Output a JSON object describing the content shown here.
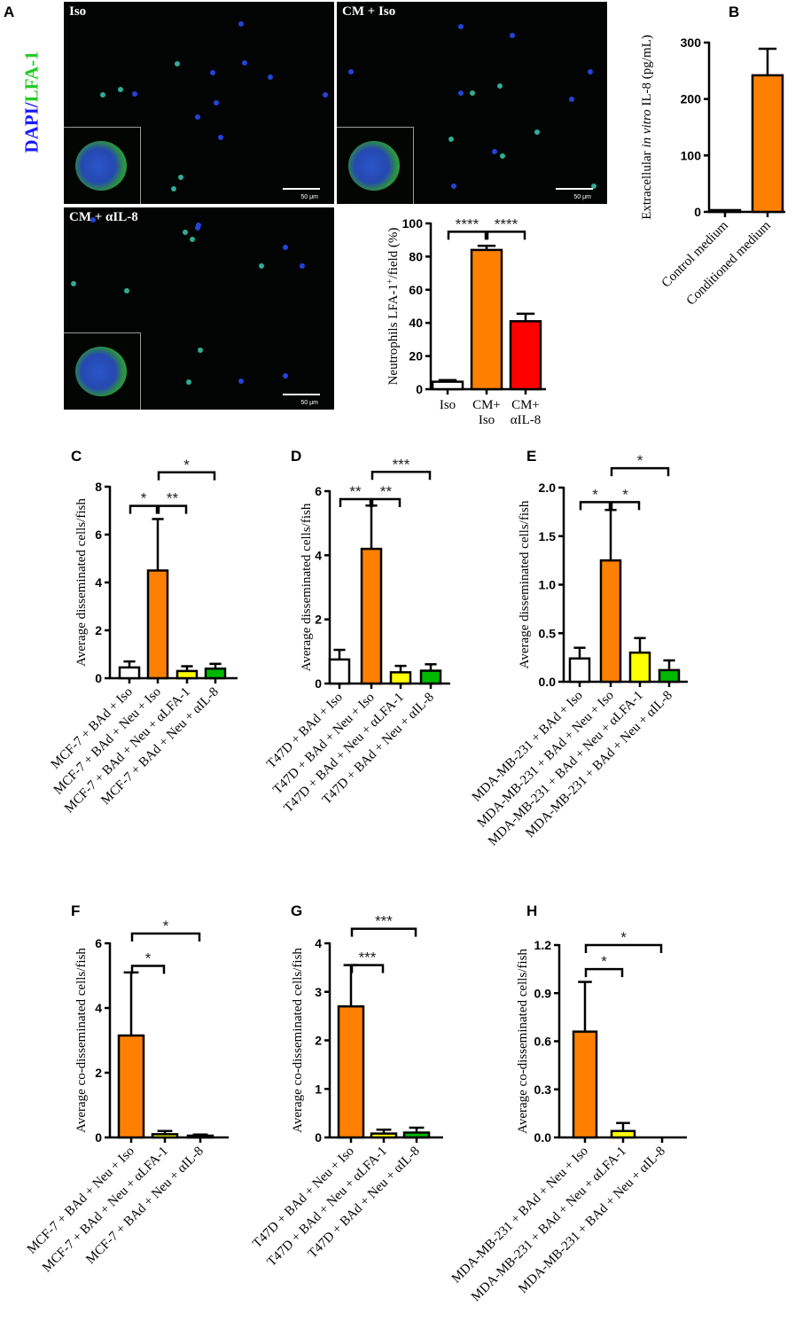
{
  "panel_letters": [
    "A",
    "B",
    "C",
    "D",
    "E",
    "F",
    "G",
    "H"
  ],
  "micrographs": {
    "side_label_dapi": "DAPI",
    "side_label_sep": "/",
    "side_label_lfa": "LFA-1",
    "dapi_color": "#1a1aff",
    "lfa_color": "#22cc22",
    "images": [
      {
        "label": "Iso",
        "scale": "50 μm"
      },
      {
        "label": "CM + Iso",
        "scale": "50 μm"
      },
      {
        "label": "CM + αIL-8",
        "scale": "50 μm"
      }
    ]
  },
  "colors": {
    "white": "#ffffff",
    "orange": "#ff8000",
    "red": "#ff0000",
    "yellow": "#ffff00",
    "green": "#00b800"
  },
  "chart_data": [
    {
      "id": "A",
      "type": "bar",
      "title": "",
      "ylabel_parts": [
        {
          "text": "Neutrophils LFA-1"
        },
        {
          "text": "+",
          "sup": true
        },
        {
          "text": "/field (%)"
        }
      ],
      "ylim": [
        0,
        100
      ],
      "ticks": [
        {
          "v": 0,
          "t": "0"
        },
        {
          "v": 20,
          "t": "20"
        },
        {
          "v": 40,
          "t": "40"
        },
        {
          "v": 60,
          "t": "60"
        },
        {
          "v": 80,
          "t": "80"
        },
        {
          "v": 100,
          "t": "100"
        }
      ],
      "categories": [
        [
          "Iso"
        ],
        [
          "CM+",
          "Iso"
        ],
        [
          "CM+",
          "αIL-8"
        ]
      ],
      "rotate": false,
      "values": [
        4.5,
        84,
        41
      ],
      "errors": [
        1,
        2.5,
        4.5
      ],
      "colors": [
        "white",
        "orange",
        "red"
      ],
      "sig": [
        {
          "from": 0,
          "to": 1,
          "y": 95,
          "label": "****"
        },
        {
          "from": 1,
          "to": 2,
          "y": 95,
          "label": "****"
        }
      ]
    },
    {
      "id": "B",
      "type": "bar",
      "ylabel_parts": [
        {
          "text": "Extracellular "
        },
        {
          "text": "in vitro",
          "italic": true
        },
        {
          "text": " IL-8 (pg/mL)"
        }
      ],
      "ylim": [
        0,
        300
      ],
      "ticks": [
        {
          "v": 0,
          "t": "0"
        },
        {
          "v": 100,
          "t": "100"
        },
        {
          "v": 200,
          "t": "200"
        },
        {
          "v": 300,
          "t": "300"
        }
      ],
      "categories": [
        [
          "Control medium"
        ],
        [
          "Conditioned medium"
        ]
      ],
      "rotate": true,
      "values": [
        3,
        242
      ],
      "errors": [
        0,
        47
      ],
      "colors": [
        "white",
        "orange"
      ],
      "sig": []
    },
    {
      "id": "C",
      "type": "bar",
      "ylabel_parts": [
        {
          "text": "Average disseminated cells/fish"
        }
      ],
      "ylim": [
        0,
        8
      ],
      "ticks": [
        {
          "v": 0,
          "t": "0"
        },
        {
          "v": 2,
          "t": "2"
        },
        {
          "v": 4,
          "t": "4"
        },
        {
          "v": 6,
          "t": "6"
        },
        {
          "v": 8,
          "t": "8"
        }
      ],
      "categories": [
        [
          "MCF-7 + BAd + Iso"
        ],
        [
          "MCF-7 + BAd + Neu + Iso"
        ],
        [
          "MCF-7 + BAd + Neu + αLFA-1"
        ],
        [
          "MCF-7 + BAd + Neu + αIL-8"
        ]
      ],
      "rotate": true,
      "values": [
        0.45,
        4.5,
        0.3,
        0.4
      ],
      "errors": [
        0.25,
        2.15,
        0.2,
        0.2
      ],
      "colors": [
        "white",
        "orange",
        "yellow",
        "green"
      ],
      "sig": [
        {
          "from": 0,
          "to": 1,
          "y": 7.2,
          "label": "*"
        },
        {
          "from": 1,
          "to": 2,
          "y": 7.2,
          "label": "**"
        },
        {
          "from": 1,
          "to": 3,
          "y": 8.6,
          "label": "*"
        }
      ]
    },
    {
      "id": "D",
      "type": "bar",
      "ylabel_parts": [
        {
          "text": "Average disseminated cells/fish"
        }
      ],
      "ylim": [
        0,
        6
      ],
      "ticks": [
        {
          "v": 0,
          "t": "0"
        },
        {
          "v": 2,
          "t": "2"
        },
        {
          "v": 4,
          "t": "4"
        },
        {
          "v": 6,
          "t": "6"
        }
      ],
      "categories": [
        [
          "T47D + BAd + Iso"
        ],
        [
          "T47D + BAd + Neu + Iso"
        ],
        [
          "T47D + BAd + Neu + αLFA-1"
        ],
        [
          "T47D + BAd + Neu + αIL-8"
        ]
      ],
      "rotate": true,
      "values": [
        0.75,
        4.2,
        0.35,
        0.4
      ],
      "errors": [
        0.3,
        1.35,
        0.2,
        0.2
      ],
      "colors": [
        "white",
        "orange",
        "yellow",
        "green"
      ],
      "sig": [
        {
          "from": 0,
          "to": 1,
          "y": 5.75,
          "label": "**"
        },
        {
          "from": 1,
          "to": 2,
          "y": 5.75,
          "label": "**"
        },
        {
          "from": 1,
          "to": 3,
          "y": 6.6,
          "label": "***"
        }
      ]
    },
    {
      "id": "E",
      "type": "bar",
      "ylabel_parts": [
        {
          "text": "Average disseminated cells/fish"
        }
      ],
      "ylim": [
        0,
        2
      ],
      "ticks": [
        {
          "v": 0,
          "t": "0.0"
        },
        {
          "v": 0.5,
          "t": "0.5"
        },
        {
          "v": 1,
          "t": "1.0"
        },
        {
          "v": 1.5,
          "t": "1.5"
        },
        {
          "v": 2,
          "t": "2.0"
        }
      ],
      "categories": [
        [
          "MDA-MB-231 + BAd + Iso"
        ],
        [
          "MDA-MB-231 + BAd + Neu + Iso"
        ],
        [
          "MDA-MB-231 + BAd + Neu + αLFA-1"
        ],
        [
          "MDA-MB-231 + BAd + Neu + αIL-8"
        ]
      ],
      "rotate": true,
      "values": [
        0.24,
        1.25,
        0.3,
        0.12
      ],
      "errors": [
        0.11,
        0.52,
        0.15,
        0.1
      ],
      "colors": [
        "white",
        "orange",
        "yellow",
        "green"
      ],
      "sig": [
        {
          "from": 0,
          "to": 1,
          "y": 1.85,
          "label": "*"
        },
        {
          "from": 1,
          "to": 2,
          "y": 1.85,
          "label": "*"
        },
        {
          "from": 1,
          "to": 3,
          "y": 2.2,
          "label": "*"
        }
      ]
    },
    {
      "id": "F",
      "type": "bar",
      "ylabel_parts": [
        {
          "text": "Average co-disseminated cells/fish"
        }
      ],
      "ylim": [
        0,
        6
      ],
      "ticks": [
        {
          "v": 0,
          "t": "0"
        },
        {
          "v": 2,
          "t": "2"
        },
        {
          "v": 4,
          "t": "4"
        },
        {
          "v": 6,
          "t": "6"
        }
      ],
      "categories": [
        [
          "MCF-7 + BAd + Neu + Iso"
        ],
        [
          "MCF-7 + BAd + Neu + αLFA-1"
        ],
        [
          "MCF-7 + BAd + Neu + αIL-8"
        ]
      ],
      "rotate": true,
      "values": [
        3.15,
        0.1,
        0.03
      ],
      "errors": [
        1.95,
        0.1,
        0.06
      ],
      "colors": [
        "orange",
        "yellow",
        "green"
      ],
      "sig": [
        {
          "from": 0,
          "to": 1,
          "y": 5.3,
          "label": "*"
        },
        {
          "from": 0,
          "to": 2,
          "y": 6.3,
          "label": "*"
        }
      ]
    },
    {
      "id": "G",
      "type": "bar",
      "ylabel_parts": [
        {
          "text": "Average co-disseminated cells/fish"
        }
      ],
      "ylim": [
        0,
        4
      ],
      "ticks": [
        {
          "v": 0,
          "t": "0"
        },
        {
          "v": 1,
          "t": "1"
        },
        {
          "v": 2,
          "t": "2"
        },
        {
          "v": 3,
          "t": "3"
        },
        {
          "v": 4,
          "t": "4"
        }
      ],
      "categories": [
        [
          "T47D + BAd + Neu + Iso"
        ],
        [
          "T47D + BAd + Neu + αLFA-1"
        ],
        [
          "T47D + BAd + Neu + αIL-8"
        ]
      ],
      "rotate": true,
      "values": [
        2.7,
        0.08,
        0.1
      ],
      "errors": [
        0.85,
        0.08,
        0.1
      ],
      "colors": [
        "orange",
        "yellow",
        "green"
      ],
      "sig": [
        {
          "from": 0,
          "to": 1,
          "y": 3.55,
          "label": "***"
        },
        {
          "from": 0,
          "to": 2,
          "y": 4.3,
          "label": "***"
        }
      ]
    },
    {
      "id": "H",
      "type": "bar",
      "ylabel_parts": [
        {
          "text": "Average co-disseminated cells/fish"
        }
      ],
      "ylim": [
        0,
        1.2
      ],
      "ticks": [
        {
          "v": 0,
          "t": "0.0"
        },
        {
          "v": 0.3,
          "t": "0.3"
        },
        {
          "v": 0.6,
          "t": "0.6"
        },
        {
          "v": 0.9,
          "t": "0.9"
        },
        {
          "v": 1.2,
          "t": "1.2"
        }
      ],
      "categories": [
        [
          "MDA-MB-231 + BAd + Neu + Iso"
        ],
        [
          "MDA-MB-231 + BAd + Neu + αLFA-1"
        ],
        [
          "MDA-MB-231 + BAd + Neu + αIL-8"
        ]
      ],
      "rotate": true,
      "values": [
        0.66,
        0.04,
        0
      ],
      "errors": [
        0.31,
        0.05,
        0
      ],
      "colors": [
        "orange",
        "yellow",
        "green"
      ],
      "sig": [
        {
          "from": 0,
          "to": 1,
          "y": 1.05,
          "label": "*"
        },
        {
          "from": 0,
          "to": 2,
          "y": 1.2,
          "label": "*"
        }
      ]
    }
  ]
}
